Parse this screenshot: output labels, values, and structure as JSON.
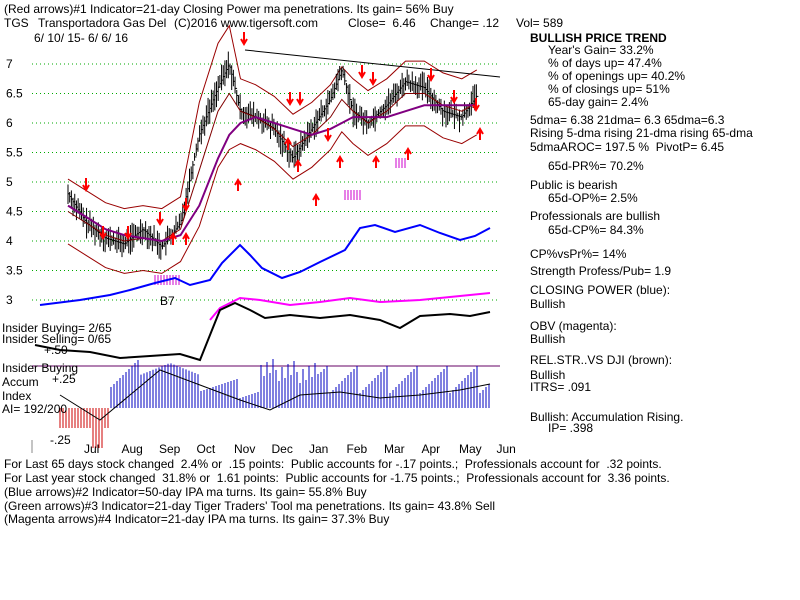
{
  "header": {
    "line1": "(Red arrows)#1 Indicator=21-day Closing Power ma penetrations. Its gain= 56% Buy",
    "ticker": "TGS",
    "company": "Transportadora Gas Del",
    "copyright": "(C)2016 www.tigersoft.com",
    "close": "Close=  6.46",
    "change": "Change= .12",
    "vol": "Vol= 589",
    "date_range": "6/ 10/ 15- 6/ 6/ 16"
  },
  "right_panel": [
    "BULLISH PRICE TREND",
    "Year's Gain= 33.2%",
    "% of days up= 47.4%",
    "% of openings up= 40.2%",
    "% of closings up= 51%",
    "65-day gain= 2.4%",
    "5dma= 6.38 21dma= 6.3 65dma=6.3",
    "Rising 5-dma rising 21-dma rising 65-dma",
    "5dmaAROC= 197.5 %  PivotP= 6.45",
    "65d-PR%= 70.2%",
    "Public is bearish",
    "65d-OP%= 2.5%",
    "Professionals are bullish",
    "65d-CP%= 84.3%",
    "CP%vsPr%= 14%",
    "Strength Profess/Pub= 1.9",
    "CLOSING POWER (blue):",
    "Bullish",
    "OBV (magenta):",
    "Bullish",
    "REL.STR..VS DJI (brown):",
    "Bullish",
    "ITRS= .091",
    "Bullish: Accumulation Rising.",
    "IP= .398"
  ],
  "left_labels": {
    "insider_buying": "Insider Buying= 2/65",
    "insider_selling": "Insider Selling= 0/65",
    "plus50": "+.50",
    "insider_buying2": "Insider Buying",
    "accum": "Accum",
    "plus25": "+.25",
    "index": "Index",
    "ai": "AI= 192/200",
    "minus25": "-.25",
    "b7": "B7"
  },
  "bottom_lines": [
    "For Last 65 days stock changed  2.4% or  .15 points:  Public accounts for -.17 points.;  Professionals account for  .32 points.",
    "For Last year stock changed  31.8% or  1.61 points:  Public accounts for -1.75 points.;  Professionals account for  3.36 points.",
    "(Blue arrows)#2 Indicator=50-day IPA ma turns. Its gain= 55.8% Buy",
    "(Green arrows)#3 Indicator=21-day Tiger Traders' Tool ma penetrations. Its gain= 43.8% Sell",
    "(Magenta arrows)#4 Indicator=21-day IPA ma turns. Its gain= 37.3% Buy"
  ],
  "colors": {
    "price": "#000000",
    "arrow_red": "#ff0000",
    "closing_power": "#0000ff",
    "obv": "#ff00ff",
    "ma21": "#800000",
    "ma65": "#800080",
    "band": "#990000",
    "accum_bar": "#0000c0",
    "accum_neg": "#cc0000",
    "grid": "#00aa00"
  },
  "chart_data": {
    "type": "line",
    "x_ticks": [
      "Jul",
      "Aug",
      "Sep",
      "Oct",
      "Nov",
      "Dec",
      "Jan",
      "Feb",
      "Mar",
      "Apr",
      "May",
      "Jun"
    ],
    "y_ticks": [
      7,
      6.5,
      6,
      5.5,
      5,
      4.5,
      4,
      3.5,
      3
    ],
    "ylim": [
      2.85,
      7.35
    ],
    "grid": true,
    "price_series": {
      "months": [
        0,
        0.5,
        1,
        1.5,
        2,
        2.5,
        3,
        3.5,
        4,
        4.3,
        4.6,
        5,
        5.5,
        6,
        6.5,
        7,
        7.3,
        7.6,
        8,
        8.5,
        9,
        9.5,
        10,
        10.5,
        10.9
      ],
      "close": [
        4.8,
        4.3,
        4.05,
        3.95,
        4.2,
        3.9,
        4.3,
        5.8,
        6.6,
        7.0,
        6.2,
        6.1,
        5.9,
        5.4,
        5.9,
        6.4,
        6.9,
        6.2,
        6.0,
        6.3,
        6.7,
        6.6,
        6.2,
        6.1,
        6.46
      ]
    },
    "ma21": [
      4.5,
      4.3,
      4.1,
      4.0,
      4.05,
      4.0,
      4.2,
      5.2,
      6.2,
      6.5,
      6.2,
      6.1,
      5.9,
      5.6,
      5.8,
      6.1,
      6.4,
      6.2,
      6.0,
      6.2,
      6.5,
      6.5,
      6.3,
      6.2,
      6.35
    ],
    "ma65": [
      4.6,
      4.4,
      4.2,
      4.1,
      4.05,
      4.0,
      4.1,
      4.6,
      5.4,
      5.8,
      6.0,
      6.1,
      6.0,
      5.9,
      5.8,
      5.9,
      6.0,
      6.1,
      6.1,
      6.1,
      6.2,
      6.3,
      6.3,
      6.3,
      6.3
    ]
  }
}
